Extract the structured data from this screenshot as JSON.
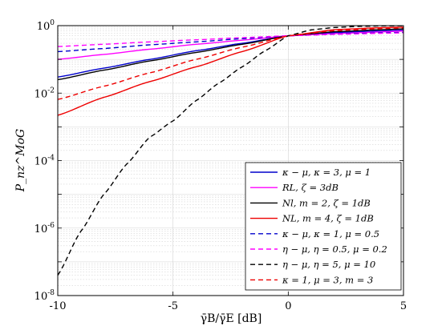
{
  "chart_data": {
    "type": "line",
    "title": "",
    "xlabel": "γ̄B/γ̄E [dB]",
    "ylabel": "P_nz^MoG",
    "xlim": [
      -10,
      5
    ],
    "ylim": [
      1e-08,
      1
    ],
    "yscale": "log",
    "grid": true,
    "legend_position": "lower-right",
    "x_ticks": [
      "-10",
      "-5",
      "0",
      "5"
    ],
    "y_ticks": [
      {
        "base": "10",
        "exp": "-8"
      },
      {
        "base": "10",
        "exp": "-6"
      },
      {
        "base": "10",
        "exp": "-4"
      },
      {
        "base": "10",
        "exp": "-2"
      },
      {
        "base": "10",
        "exp": "0"
      }
    ],
    "series": [
      {
        "name": "κ − μ, κ = 3, μ = 1",
        "color": "#0000cc",
        "dash": "solid",
        "x": [
          -10,
          -8,
          -6,
          -4,
          -2,
          0,
          2,
          4,
          5
        ],
        "y": [
          0.03,
          0.055,
          0.1,
          0.18,
          0.3,
          0.5,
          0.62,
          0.7,
          0.73
        ]
      },
      {
        "name": "RL, ζ = 3dB",
        "color": "#ff00ff",
        "dash": "solid",
        "x": [
          -10,
          -8,
          -6,
          -4,
          -2,
          0,
          2,
          4,
          5
        ],
        "y": [
          0.1,
          0.14,
          0.2,
          0.28,
          0.37,
          0.5,
          0.58,
          0.65,
          0.69
        ]
      },
      {
        "name": "Nl, m = 2, ζ = 1dB",
        "color": "#000000",
        "dash": "solid",
        "x": [
          -10,
          -8,
          -6,
          -4,
          -2,
          0,
          2,
          4,
          5
        ],
        "y": [
          0.025,
          0.048,
          0.09,
          0.16,
          0.28,
          0.5,
          0.66,
          0.76,
          0.8
        ]
      },
      {
        "name": "NL, m = 4, ζ = 1dB",
        "color": "#ee0000",
        "dash": "solid",
        "x": [
          -10,
          -8,
          -6,
          -4,
          -2,
          0,
          2,
          4,
          5
        ],
        "y": [
          0.0022,
          0.0075,
          0.022,
          0.06,
          0.17,
          0.5,
          0.76,
          0.87,
          0.9
        ]
      },
      {
        "name": "κ − μ, κ = 1, μ = 0.5",
        "color": "#0000cc",
        "dash": "dashed",
        "x": [
          -10,
          -8,
          -6,
          -4,
          -2,
          0,
          2,
          4,
          5
        ],
        "y": [
          0.17,
          0.21,
          0.27,
          0.33,
          0.41,
          0.5,
          0.56,
          0.61,
          0.63
        ]
      },
      {
        "name": "η − μ, η = 0.5, μ = 0.2",
        "color": "#ff00ff",
        "dash": "dashed",
        "x": [
          -10,
          -8,
          -6,
          -4,
          -2,
          0,
          2,
          4,
          5
        ],
        "y": [
          0.24,
          0.28,
          0.33,
          0.38,
          0.44,
          0.5,
          0.55,
          0.59,
          0.61
        ]
      },
      {
        "name": "η − μ, η = 5, μ = 10",
        "color": "#000000",
        "dash": "dashed",
        "x": [
          -10,
          -9,
          -8,
          -7,
          -6,
          -5,
          -4,
          -3,
          -2,
          -1,
          0,
          1,
          2,
          3,
          4,
          5
        ],
        "y": [
          4e-08,
          8e-07,
          1e-05,
          8e-05,
          0.0005,
          0.0015,
          0.006,
          0.02,
          0.06,
          0.18,
          0.5,
          0.75,
          0.88,
          0.95,
          0.98,
          0.99
        ]
      },
      {
        "name": "κ = 1, μ = 3, m = 3",
        "color": "#ee0000",
        "dash": "dashed",
        "x": [
          -10,
          -8,
          -6,
          -4,
          -2,
          0,
          2,
          4,
          5
        ],
        "y": [
          0.0065,
          0.016,
          0.04,
          0.1,
          0.23,
          0.5,
          0.71,
          0.82,
          0.86
        ]
      }
    ]
  }
}
